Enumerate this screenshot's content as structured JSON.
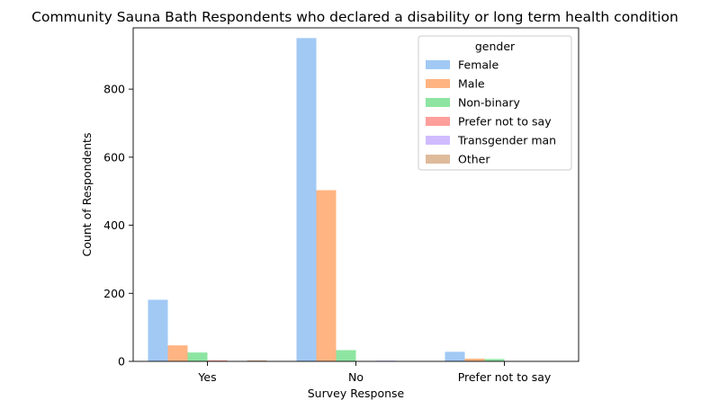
{
  "chart_data": {
    "type": "bar",
    "title": "Community Sauna Bath Respondents who declared a disability or long term health condition",
    "xlabel": "Survey Response",
    "ylabel": "Count of Respondents",
    "categories": [
      "Yes",
      "No",
      "Prefer not to say"
    ],
    "ylim": [
      0,
      980
    ],
    "yticks": [
      0,
      200,
      400,
      600,
      800
    ],
    "grid": false,
    "legend": {
      "title": "gender",
      "placement": "top-right"
    },
    "series": [
      {
        "name": "Female",
        "color": "#a1c9f4",
        "values": [
          181,
          950,
          28
        ]
      },
      {
        "name": "Male",
        "color": "#ffb482",
        "values": [
          47,
          503,
          8
        ]
      },
      {
        "name": "Non-binary",
        "color": "#8de5a1",
        "values": [
          26,
          33,
          7
        ]
      },
      {
        "name": "Prefer not to say",
        "color": "#ff9f9b",
        "values": [
          3,
          0,
          0
        ]
      },
      {
        "name": "Transgender man",
        "color": "#d0bbff",
        "values": [
          0,
          2,
          0
        ]
      },
      {
        "name": "Other",
        "color": "#debb9b",
        "values": [
          3,
          0,
          0
        ]
      }
    ]
  }
}
